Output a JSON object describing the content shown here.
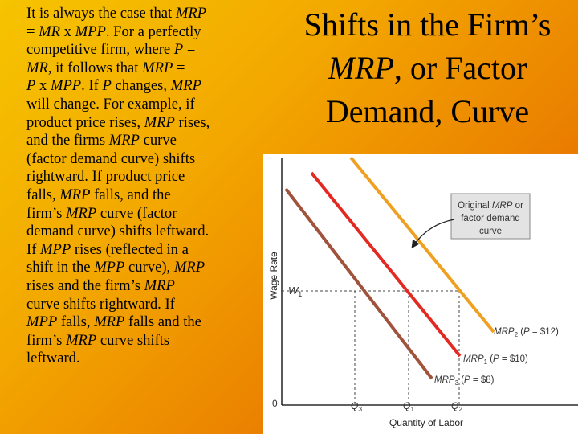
{
  "body_text": {
    "lines": [
      [
        {
          "t": "It is always the case that "
        },
        {
          "t": "MRP",
          "i": true
        }
      ],
      [
        {
          "t": "= "
        },
        {
          "t": "MR",
          "i": true
        },
        {
          "t": " x "
        },
        {
          "t": "MPP",
          "i": true
        },
        {
          "t": ".  For a perfectly"
        }
      ],
      [
        {
          "t": "competitive firm, where "
        },
        {
          "t": "P",
          "i": true
        },
        {
          "t": " ="
        }
      ],
      [
        {
          "t": "MR",
          "i": true
        },
        {
          "t": ", it follows that "
        },
        {
          "t": "MRP",
          "i": true
        },
        {
          "t": " ="
        }
      ],
      [
        {
          "t": "P",
          "i": true
        },
        {
          "t": " x "
        },
        {
          "t": "MPP",
          "i": true
        },
        {
          "t": ".  If "
        },
        {
          "t": "P",
          "i": true
        },
        {
          "t": " changes, "
        },
        {
          "t": "MRP",
          "i": true
        }
      ],
      [
        {
          "t": "will change.  For example, if"
        }
      ],
      [
        {
          "t": "product price rises, "
        },
        {
          "t": "MRP",
          "i": true
        },
        {
          "t": " rises,"
        }
      ],
      [
        {
          "t": "and the firms "
        },
        {
          "t": "MRP",
          "i": true
        },
        {
          "t": " curve"
        }
      ],
      [
        {
          "t": "(factor demand curve) shifts"
        }
      ],
      [
        {
          "t": "rightward.  If product price"
        }
      ],
      [
        {
          "t": "falls, "
        },
        {
          "t": "MRP",
          "i": true
        },
        {
          "t": " falls, and the"
        }
      ],
      [
        {
          "t": "firm’s "
        },
        {
          "t": "MRP",
          "i": true
        },
        {
          "t": " curve (factor"
        }
      ],
      [
        {
          "t": "demand curve) shifts leftward."
        }
      ],
      [
        {
          "t": "If "
        },
        {
          "t": "MPP",
          "i": true
        },
        {
          "t": " rises (reflected in a"
        }
      ],
      [
        {
          "t": "shift in the "
        },
        {
          "t": "MPP",
          "i": true
        },
        {
          "t": " curve), "
        },
        {
          "t": "MRP",
          "i": true
        }
      ],
      [
        {
          "t": "rises and the firm’s "
        },
        {
          "t": "MRP",
          "i": true
        }
      ],
      [
        {
          "t": "curve shifts rightward.  If"
        }
      ],
      [
        {
          "t": "MPP",
          "i": true
        },
        {
          "t": " falls, "
        },
        {
          "t": "MRP",
          "i": true
        },
        {
          "t": " falls and the"
        }
      ],
      [
        {
          "t": "firm’s "
        },
        {
          "t": "MRP",
          "i": true
        },
        {
          "t": " curve shifts"
        }
      ],
      [
        {
          "t": "leftward."
        }
      ]
    ]
  },
  "title": {
    "line1": "Shifts in the Firm’s",
    "line2_italic": "MRP",
    "line2_rest": ", or Factor",
    "line3": "Demand, Curve"
  },
  "diagram": {
    "y_axis_label": "Wage Rate",
    "x_axis_label": "Quantity of Labor",
    "origin_label": "0",
    "wage_label": "W",
    "wage_sub": "1",
    "q_labels": [
      {
        "main": "Q",
        "sub": "3"
      },
      {
        "main": "Q",
        "sub": "1"
      },
      {
        "main": "Q",
        "sub": "2"
      }
    ],
    "callout": {
      "line1_a": "Original ",
      "line1_b": "MRP",
      "line1_c": " or",
      "line2": "factor demand",
      "line3": "curve"
    },
    "curves": [
      {
        "id": "mrp2",
        "main": "MRP",
        "sub": "2",
        "price_a": " (",
        "price_p": "P",
        "price_b": " = $12)",
        "color": "#f0a020"
      },
      {
        "id": "mrp1",
        "main": "MRP",
        "sub": "1",
        "price_a": " (",
        "price_p": "P",
        "price_b": " = $10)",
        "color": "#e22a22"
      },
      {
        "id": "mrp3",
        "main": "MRP",
        "sub": "3",
        "price_a": " (",
        "price_p": "P",
        "price_b": " = $8)",
        "color": "#a0523a"
      }
    ]
  }
}
